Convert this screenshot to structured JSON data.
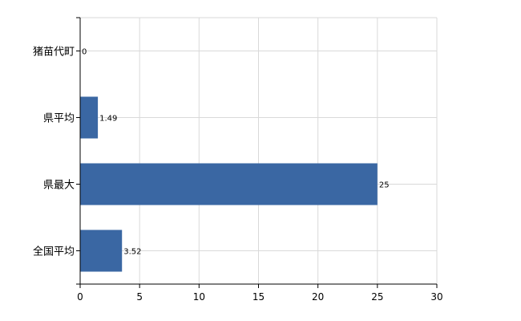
{
  "chart_data": {
    "type": "bar",
    "orientation": "horizontal",
    "categories": [
      "猪苗代町",
      "県平均",
      "県最大",
      "全国平均"
    ],
    "values": [
      0,
      1.49,
      25,
      3.52
    ],
    "data_labels": [
      "0",
      "1.49",
      "25",
      "3.52"
    ],
    "xlim": [
      0,
      30
    ],
    "xticks": [
      0,
      5,
      10,
      15,
      20,
      25,
      30
    ],
    "xtick_labels": [
      "0",
      "5",
      "10",
      "15",
      "20",
      "25",
      "30"
    ],
    "grid": true,
    "legend": "none",
    "bar_color": "#3a67a3"
  }
}
